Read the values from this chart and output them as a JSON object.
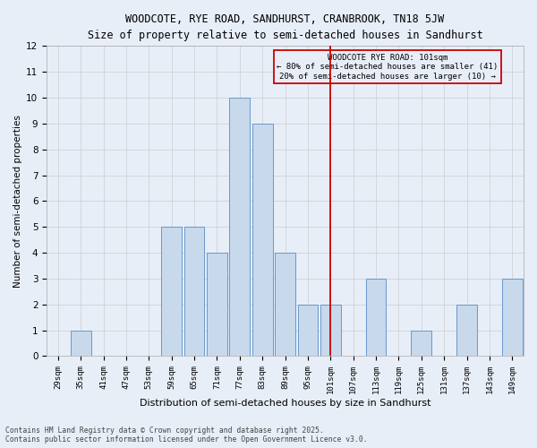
{
  "title_line1": "WOODCOTE, RYE ROAD, SANDHURST, CRANBROOK, TN18 5JW",
  "title_line2": "Size of property relative to semi-detached houses in Sandhurst",
  "xlabel": "Distribution of semi-detached houses by size in Sandhurst",
  "ylabel": "Number of semi-detached properties",
  "categories": [
    "29sqm",
    "35sqm",
    "41sqm",
    "47sqm",
    "53sqm",
    "59sqm",
    "65sqm",
    "71sqm",
    "77sqm",
    "83sqm",
    "89sqm",
    "95sqm",
    "101sqm",
    "107sqm",
    "113sqm",
    "119sqm",
    "125sqm",
    "131sqm",
    "137sqm",
    "143sqm",
    "149sqm"
  ],
  "values": [
    0,
    1,
    0,
    0,
    0,
    5,
    5,
    4,
    10,
    9,
    4,
    2,
    2,
    0,
    3,
    0,
    1,
    0,
    2,
    0,
    3
  ],
  "bar_color": "#c8d9ec",
  "bar_edge_color": "#6699cc",
  "grid_color": "#cccccc",
  "vline_x": 12,
  "vline_color": "#cc0000",
  "annotation_title": "WOODCOTE RYE ROAD: 101sqm",
  "annotation_line1": "← 80% of semi-detached houses are smaller (41)",
  "annotation_line2": "20% of semi-detached houses are larger (10) →",
  "annotation_box_color": "#cc0000",
  "footer_line1": "Contains HM Land Registry data © Crown copyright and database right 2025.",
  "footer_line2": "Contains public sector information licensed under the Open Government Licence v3.0.",
  "ylim": [
    0,
    12
  ],
  "yticks": [
    0,
    1,
    2,
    3,
    4,
    5,
    6,
    7,
    8,
    9,
    10,
    11,
    12
  ],
  "bg_color": "#e8eef8"
}
